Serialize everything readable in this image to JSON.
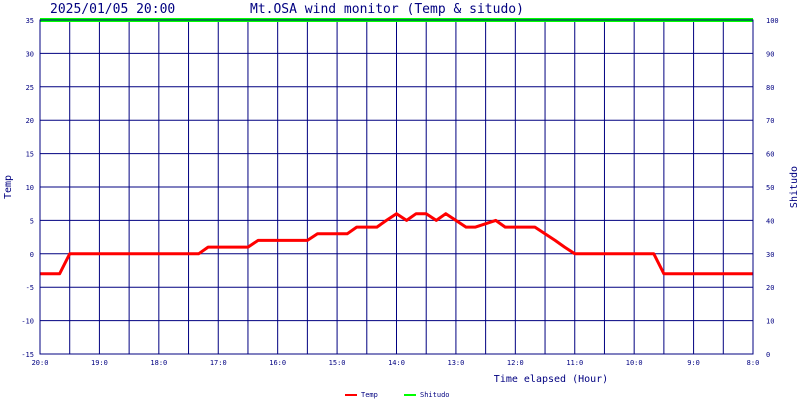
{
  "header": {
    "datetime": "2025/01/05 20:00",
    "title": "Mt.OSA wind monitor (Temp & situdo)"
  },
  "chart_data": {
    "type": "line",
    "title": "Mt.OSA wind monitor (Temp & situdo)",
    "xlabel": "Time elapsed (Hour)",
    "ylabel_left": "Temp",
    "ylabel_right": "Shitudo",
    "ylim_left": [
      -15,
      35
    ],
    "ylim_right": [
      0,
      100
    ],
    "yticks_left": [
      "-15",
      "-10",
      "-5",
      "0",
      "5",
      "10",
      "15",
      "20",
      "25",
      "30",
      "35"
    ],
    "yticks_right": [
      "0",
      "10",
      "20",
      "30",
      "40",
      "50",
      "60",
      "70",
      "80",
      "90",
      "100"
    ],
    "x_tick_labels": [
      "20:0",
      "19:0",
      "18:0",
      "17:0",
      "16:0",
      "15:0",
      "14:0",
      "13:0",
      "12:0",
      "11:0",
      "10:0",
      "9:0",
      "8:0"
    ],
    "x_reversed": true,
    "xlim_hours": [
      0,
      12
    ],
    "grid": true,
    "legend_position": "bottom-center",
    "series": [
      {
        "name": "Temp",
        "axis": "left",
        "color": "#ff0000",
        "x": [
          0,
          0.33,
          0.5,
          2.67,
          2.83,
          3.5,
          3.67,
          4.5,
          4.67,
          5.17,
          5.33,
          5.67,
          5.83,
          6.0,
          6.17,
          6.33,
          6.5,
          6.67,
          6.83,
          7.0,
          7.17,
          7.33,
          7.67,
          7.83,
          8.0,
          8.33,
          8.5,
          8.67,
          8.83,
          9.0,
          10.33,
          10.5,
          12.0
        ],
        "values": [
          -3,
          -3,
          0,
          0,
          1,
          1,
          2,
          2,
          3,
          3,
          4,
          4,
          5,
          6,
          5,
          6,
          6,
          5,
          6,
          5,
          4,
          4,
          5,
          4,
          4,
          4,
          3,
          2,
          1,
          0,
          0,
          -3,
          -3
        ]
      },
      {
        "name": "Shitudo",
        "axis": "right",
        "color": "#00ff00",
        "x": [
          0,
          12
        ],
        "values": [
          100,
          100
        ]
      }
    ]
  }
}
